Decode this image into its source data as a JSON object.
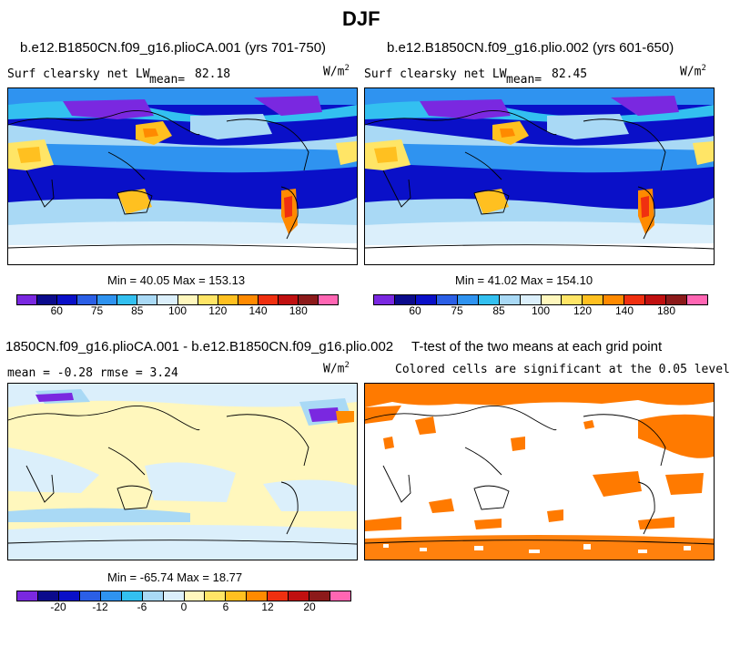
{
  "title": "DJF",
  "panels": {
    "a": {
      "case": "b.e12.B1850CN.f09_g16.plioCA.001 (yrs 701-750)",
      "var": "Surf clearsky net LW",
      "mean_label": "mean=",
      "mean": "82.18",
      "units": "W/m",
      "units_sup": "2",
      "minmax": "Min =  40.05 Max = 153.13"
    },
    "b": {
      "case": "b.e12.B1850CN.f09_g16.plio.002 (yrs 601-650)",
      "var": "Surf clearsky net LW",
      "mean_label": "mean=",
      "mean": "82.45",
      "units": "W/m",
      "units_sup": "2",
      "minmax": "Min =  41.02 Max = 154.10"
    },
    "c": {
      "case": "1850CN.f09_g16.plioCA.001 - b.e12.B1850CN.f09_g16.plio.002",
      "stats": "mean =  -0.28    rmse =   3.24",
      "units": "W/m",
      "units_sup": "2",
      "minmax": "Min = -65.74 Max =  18.77"
    },
    "d": {
      "case": "T-test of the two means at each grid point",
      "note": "Colored cells are significant at the 0.05 level"
    }
  },
  "colorbars": {
    "abs_colors": [
      "#7a28e0",
      "#0b0b8c",
      "#0a10c8",
      "#2b5fe6",
      "#2f93f0",
      "#33c0f0",
      "#a9d9f5",
      "#dbeffb",
      "#fff7bd",
      "#ffe566",
      "#ffc020",
      "#ff8a00",
      "#f03010",
      "#c01010",
      "#8c1a1a",
      "#ff66b3"
    ],
    "abs_ticks": [
      "60",
      "75",
      "85",
      "100",
      "120",
      "140",
      "180"
    ],
    "diff_colors": [
      "#7a28e0",
      "#0b0b8c",
      "#0a10c8",
      "#2b5fe6",
      "#2f93f0",
      "#33c0f0",
      "#a9d9f5",
      "#dbeffb",
      "#fff7bd",
      "#ffe566",
      "#ffc020",
      "#ff8a00",
      "#f03010",
      "#c01010",
      "#8c1a1a",
      "#ff66b3"
    ],
    "diff_ticks": [
      "-20",
      "-12",
      "-6",
      "0",
      "6",
      "12",
      "20"
    ]
  },
  "colors": {
    "ocean_deep": "#0a10c8",
    "ocean_mid": "#2f93f0",
    "light": "#a9d9f5",
    "pale": "#dbeffb",
    "cream": "#fff7bd",
    "orange_sig": "#ff7a00"
  }
}
